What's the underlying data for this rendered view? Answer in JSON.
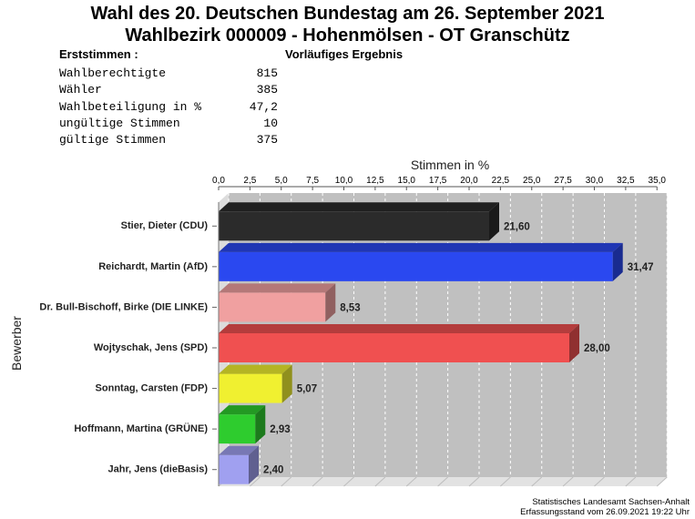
{
  "header": {
    "title_line1": "Wahl des 20. Deutschen Bundestag am 26. September 2021",
    "title_line2": "Wahlbezirk 000009 - Hohenmölsen - OT Granschütz",
    "section_label": "Erststimmen  :",
    "status": "Vorläufiges Ergebnis"
  },
  "stats": [
    {
      "label": "Wahlberechtigte",
      "value": "815"
    },
    {
      "label": "Wähler",
      "value": "385"
    },
    {
      "label": "Wahlbeteiligung in %",
      "value": "47,2"
    },
    {
      "label": "ungültige Stimmen",
      "value": "10"
    },
    {
      "label": "gültige Stimmen",
      "value": "375"
    }
  ],
  "footer": {
    "line1": "Statistisches Landesamt Sachsen-Anhalt",
    "line2": "Erfassungsstand vom 26.09.2021 19:22 Uhr"
  },
  "chart_data": {
    "type": "bar",
    "orientation": "horizontal",
    "xlabel": "Stimmen in %",
    "ylabel": "Bewerber",
    "xlim": [
      0,
      35
    ],
    "ticks": [
      0,
      2.5,
      5,
      7.5,
      10,
      12.5,
      15,
      17.5,
      20,
      22.5,
      25,
      27.5,
      30,
      32.5,
      35
    ],
    "tick_labels": [
      "0,0",
      "2,5",
      "5,0",
      "7,5",
      "10,0",
      "12,5",
      "15,0",
      "17,5",
      "20,0",
      "22,5",
      "25,0",
      "27,5",
      "30,0",
      "32,5",
      "35,0"
    ],
    "grid": true,
    "categories": [
      "Stier, Dieter (CDU)",
      "Reichardt, Martin (AfD)",
      "Dr. Bull-Bischoff, Birke (DIE LINKE)",
      "Wojtyschak, Jens (SPD)",
      "Sonntag, Carsten (FDP)",
      "Hoffmann, Martina (GRÜNE)",
      "Jahr, Jens (dieBasis)"
    ],
    "values": [
      21.6,
      31.47,
      8.53,
      28.0,
      5.07,
      2.93,
      2.4
    ],
    "value_labels": [
      "21,60",
      "31,47",
      "8,53",
      "28,00",
      "5,07",
      "2,93",
      "2,40"
    ],
    "colors": [
      "#2b2b2b",
      "#2a48f0",
      "#f0a0a0",
      "#f05050",
      "#f0f030",
      "#2ecc2e",
      "#a0a0f0"
    ]
  }
}
